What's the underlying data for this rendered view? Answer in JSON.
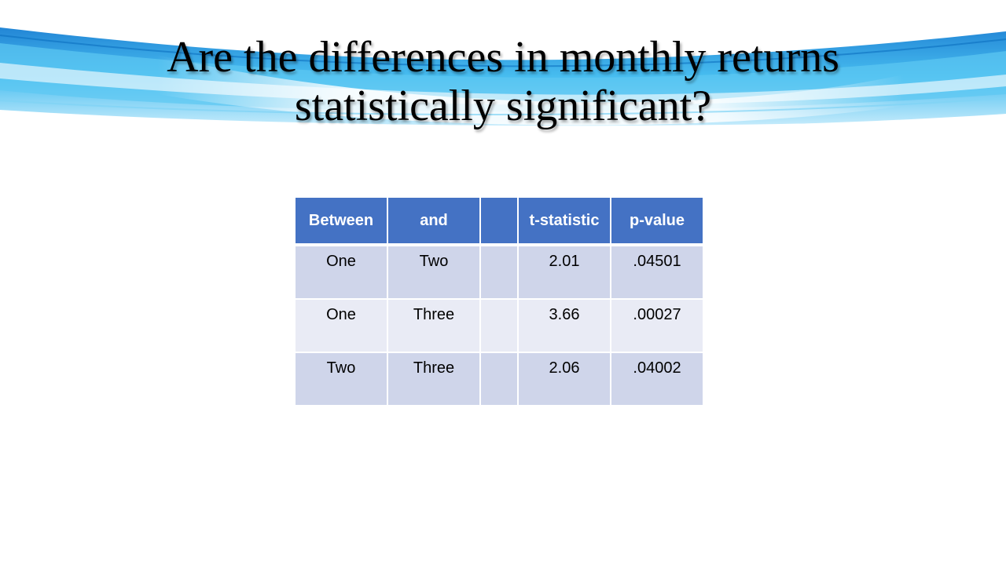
{
  "slide": {
    "title_line1": "Are the differences in monthly returns",
    "title_line2": "statistically significant?"
  },
  "table": {
    "headers": [
      "Between",
      "and",
      "",
      "t-statistic",
      "p-value"
    ],
    "rows": [
      [
        "One",
        "Two",
        "",
        "2.01",
        ".04501"
      ],
      [
        "One",
        "Three",
        "",
        "3.66",
        ".00027"
      ],
      [
        "Two",
        "Three",
        "",
        "2.06",
        ".04002"
      ]
    ]
  },
  "colors": {
    "header_fill": "#4472c4",
    "row_band_dark": "#cfd5ea",
    "row_band_light": "#e9ebf5",
    "banner_blue": "#29a8e0"
  }
}
